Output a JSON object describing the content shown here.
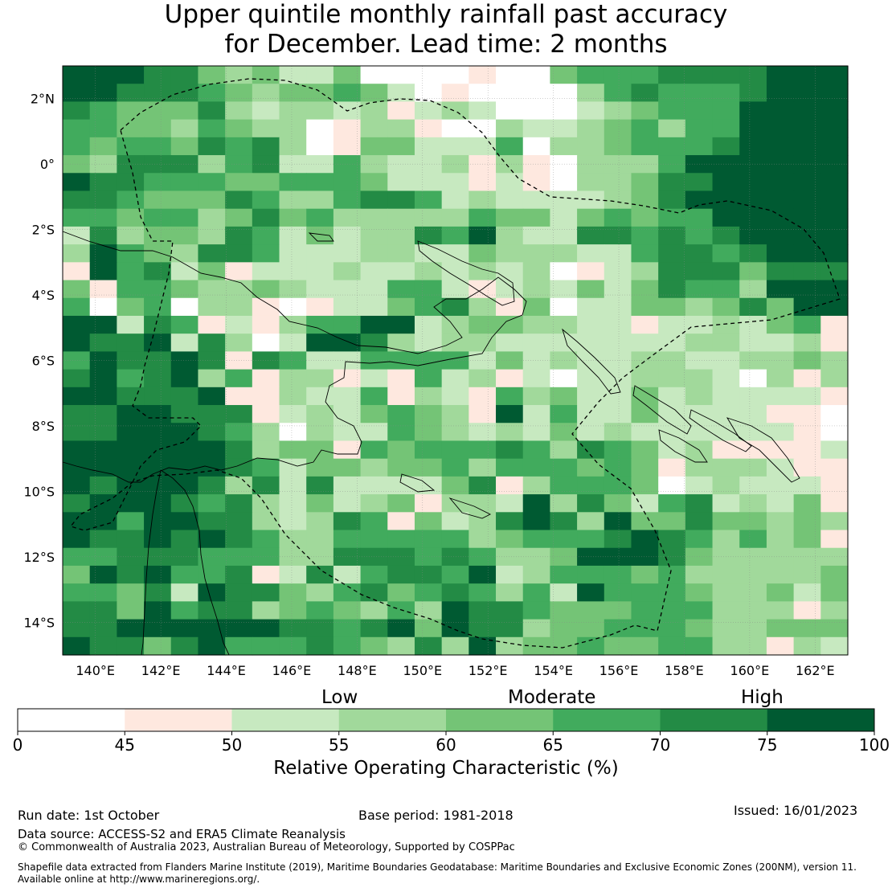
{
  "title": {
    "line1": "Upper quintile monthly rainfall past accuracy",
    "line2": "for December. Lead time: 2 months"
  },
  "map": {
    "lon_range": [
      139,
      163
    ],
    "lat_range": [
      -15,
      3
    ],
    "lon_ticks": [
      "140°E",
      "142°E",
      "144°E",
      "146°E",
      "148°E",
      "150°E",
      "152°E",
      "154°E",
      "156°E",
      "158°E",
      "160°E",
      "162°E"
    ],
    "lon_tick_values": [
      140,
      142,
      144,
      146,
      148,
      150,
      152,
      154,
      156,
      158,
      160,
      162
    ],
    "lat_ticks": [
      "2°N",
      "0°",
      "2°S",
      "4°S",
      "6°S",
      "8°S",
      "10°S",
      "12°S",
      "14°S"
    ],
    "lat_tick_values": [
      2,
      0,
      -2,
      -4,
      -6,
      -8,
      -10,
      -12,
      -14
    ],
    "grid_cols": 29,
    "grid_rows": 33,
    "value_rows": [
      "77766434224000010045556666777",
      "77666543445420100003565556777",
      "65444632332312320002345557777",
      "55443543301331003223453557777",
      "54554656301442225033455567777",
      "43666356225322313103335777777",
      "76655544555422212103346677777",
      "66544465335665232222346777777",
      "55455346453333354424545577777",
      "26344365242336573226656567777",
      "37543665222332243332256656777",
      "17562412223223232301236664666",
      "41554334322255212324246553777",
      "50450331012245631402244346477",
      "77265121355772344332212232451",
      "76672630277632332222222332231",
      "57667616522555524232233223343",
      "67567351331215231202233320313",
      "77666711322513215342242322221",
      "66776661232454317252242222110",
      "66777653032254323242322222210",
      "77777763441545556536542311112",
      "77777765244344535554541333211",
      "76777636262222461355540232221",
      "67776563242341332736425623241",
      "77577663236514236763744644343",
      "76676765335555534555676535341",
      "55666555336665653347776433333",
      "47675561262566572355545333334",
      "55462766435645653527555433424",
      "66475663454353766544455533313",
      "66777777665674766344555433444",
      "76646755565436373445445533132"
    ]
  },
  "colorbar": {
    "category_labels": [
      "Low",
      "Moderate",
      "High"
    ],
    "tick_labels": [
      "0",
      "45",
      "50",
      "55",
      "60",
      "65",
      "70",
      "75",
      "100"
    ],
    "colors": [
      "#ffffff",
      "#fee8df",
      "#c7e9c0",
      "#a1d99b",
      "#74c476",
      "#41ab5d",
      "#238b45",
      "#005a32"
    ],
    "title": "Relative Operating Characteristic (%)"
  },
  "footer": {
    "run_date": "Run date: 1st October",
    "base_period": "Base period: 1981-2018",
    "issued": "Issued: 16/01/2023",
    "data_source": "Data source: ACCESS-S2 and ERA5 Climate Reanalysis",
    "copyright": "© Commonwealth of Australia 2023, Australian Bureau of Meteorology, Supported by COSPPac",
    "shapefile_line1": "Shapefile data extracted from Flanders Marine Institute (2019), Maritime Boundaries Geodatabase: Maritime Boundaries and Exclusive Economic Zones (200NM), version 11.",
    "shapefile_line2": "Available online at http://www.marineregions.org/."
  }
}
